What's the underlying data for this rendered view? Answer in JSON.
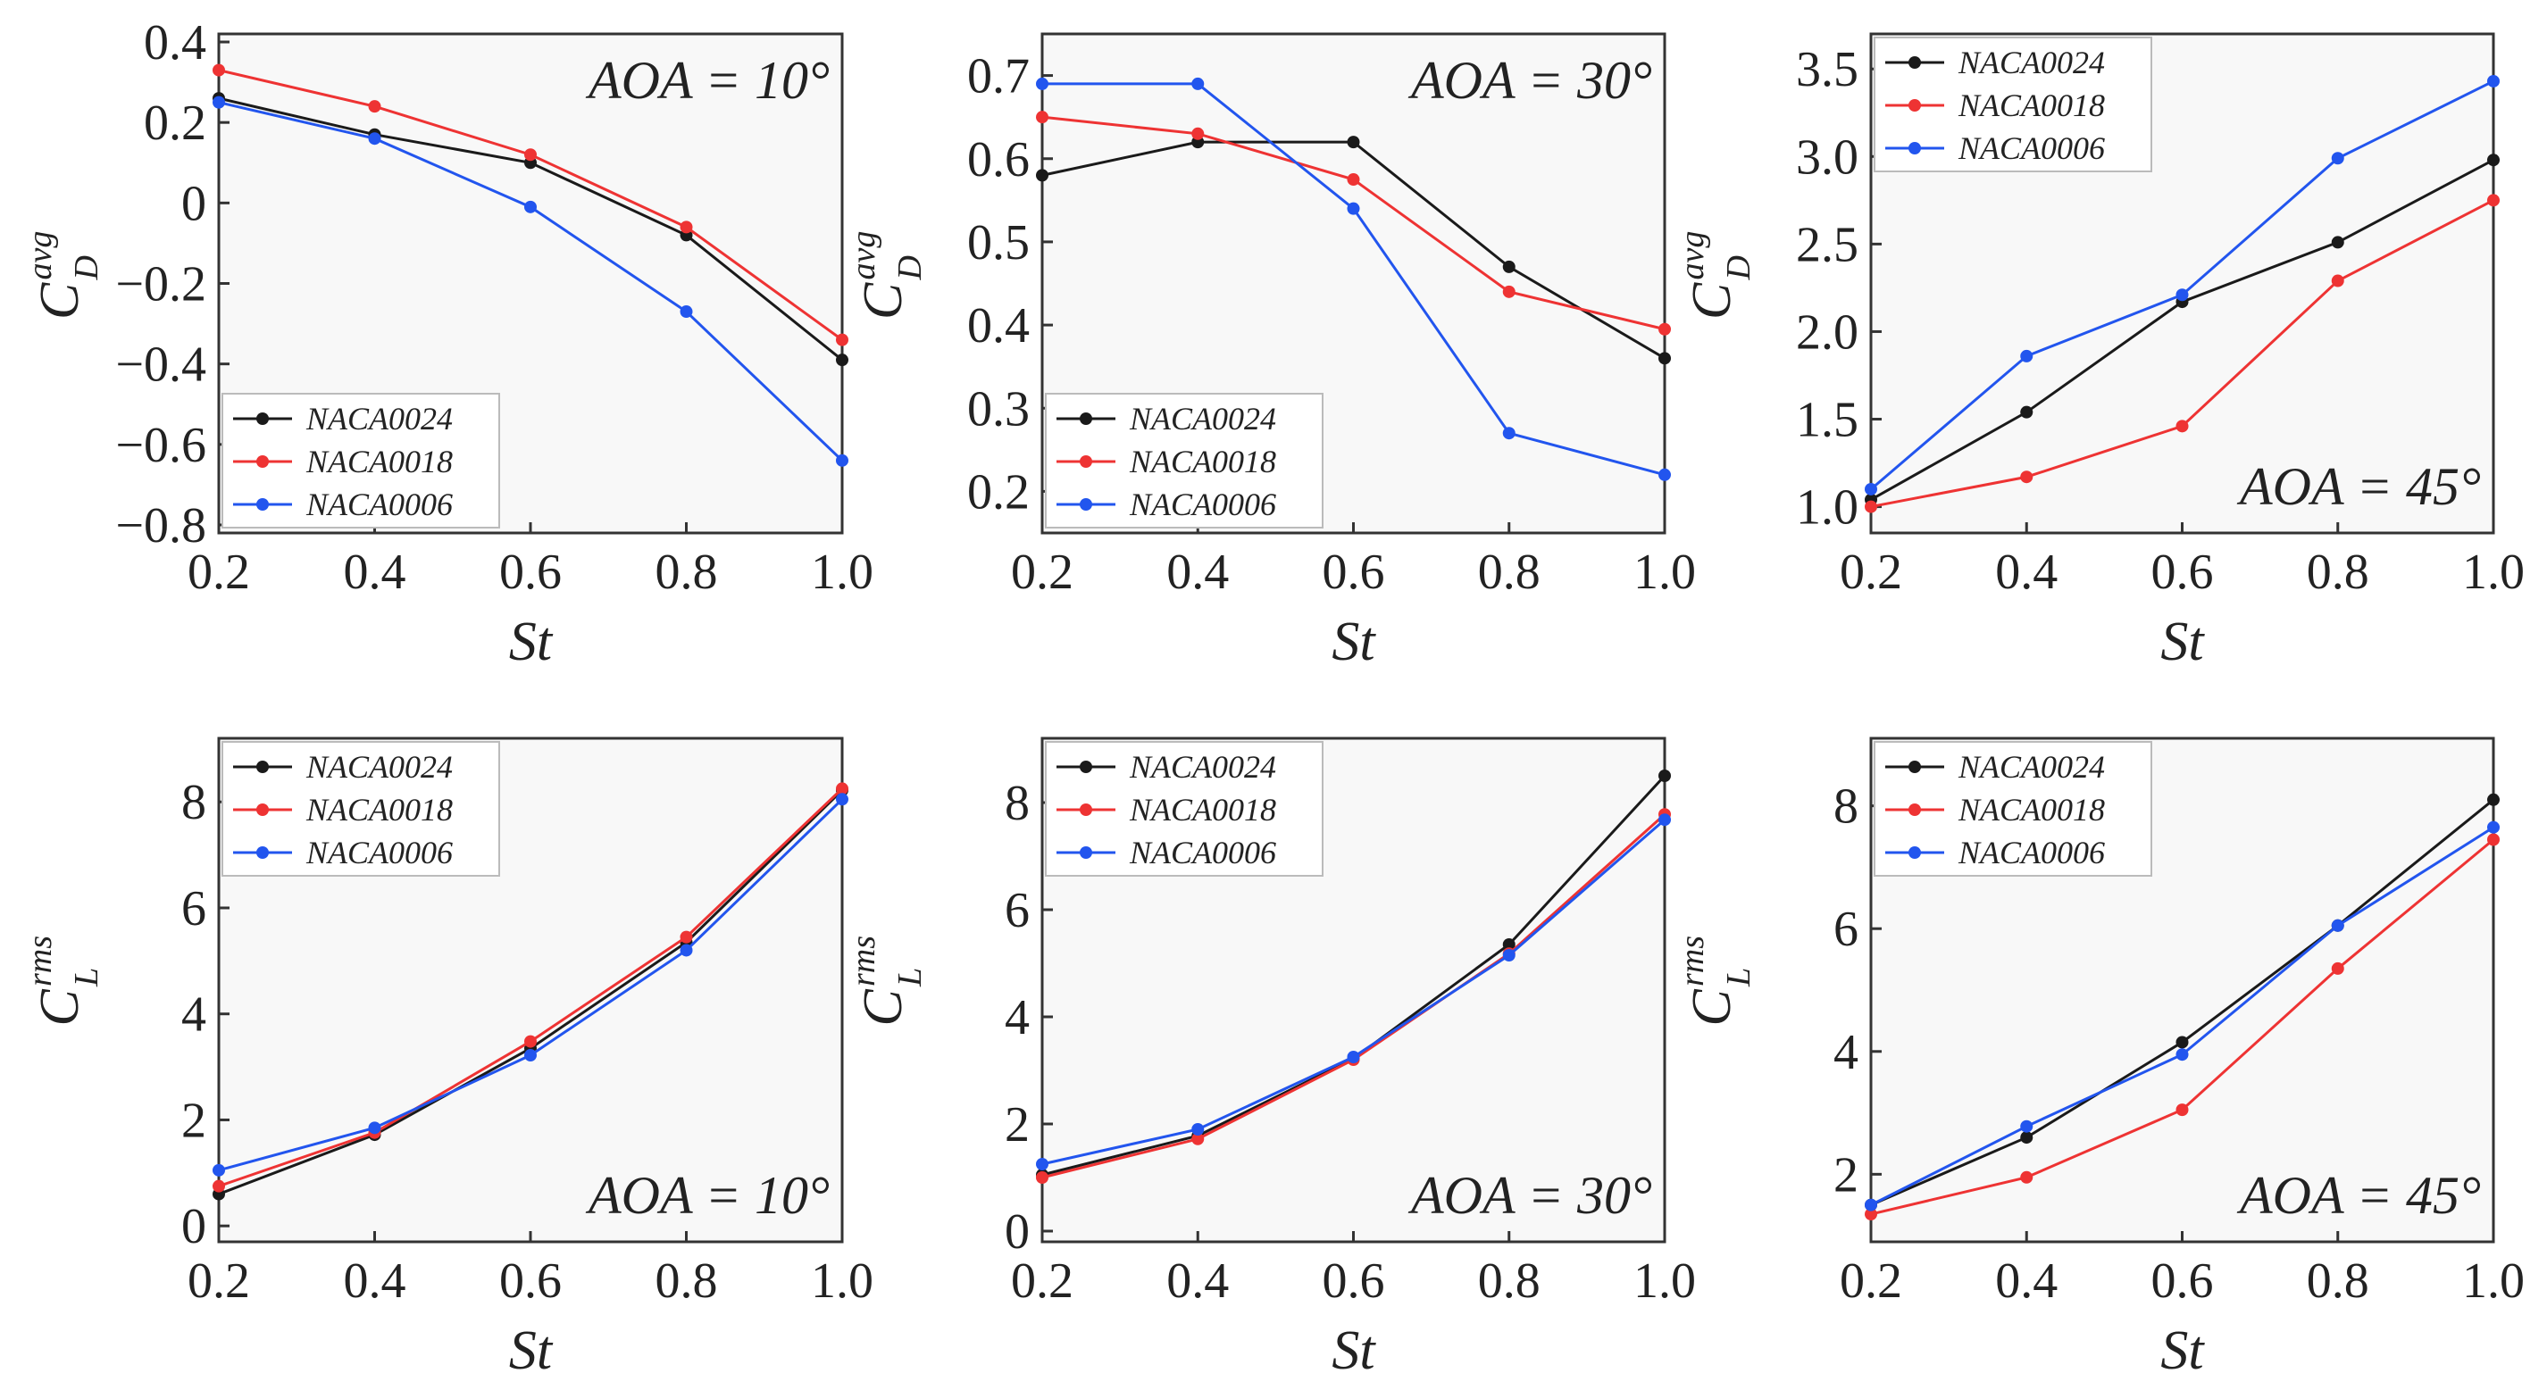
{
  "figure": {
    "colors": {
      "NACA0024": "#1a1a1a",
      "NACA0018": "#ee3333",
      "NACA0006": "#2255ee"
    }
  },
  "chart_data": [
    {
      "id": "cd-10",
      "type": "line",
      "title": "",
      "annotation": "AOA = 10°",
      "xlabel": "St",
      "ylabel": {
        "base": "C",
        "sup": "avg",
        "sub": "D"
      },
      "x": [
        0.2,
        0.4,
        0.6,
        0.8,
        1.0
      ],
      "xlim": [
        0.2,
        1.0
      ],
      "ylim": [
        -0.82,
        0.42
      ],
      "xticks": [
        0.2,
        0.4,
        0.6,
        0.8,
        1.0
      ],
      "xtick_labels": [
        "0.2",
        "0.4",
        "0.6",
        "0.8",
        "1.0"
      ],
      "yticks": [
        0.4,
        0.2,
        0,
        -0.2,
        -0.4,
        -0.6,
        -0.8
      ],
      "ytick_labels": [
        "0.4",
        "0.2",
        "0",
        "−0.2",
        "−0.4",
        "−0.6",
        "−0.8"
      ],
      "legend_position": "bottom-left",
      "annotation_position": "top-right",
      "series": [
        {
          "name": "NACA0024",
          "values": [
            0.26,
            0.17,
            0.1,
            -0.08,
            -0.39
          ]
        },
        {
          "name": "NACA0018",
          "values": [
            0.33,
            0.24,
            0.12,
            -0.06,
            -0.34
          ]
        },
        {
          "name": "NACA0006",
          "values": [
            0.25,
            0.16,
            -0.01,
            -0.27,
            -0.64
          ]
        }
      ]
    },
    {
      "id": "cd-30",
      "type": "line",
      "title": "",
      "annotation": "AOA = 30°",
      "xlabel": "St",
      "ylabel": {
        "base": "C",
        "sup": "avg",
        "sub": "D"
      },
      "x": [
        0.2,
        0.4,
        0.6,
        0.8,
        1.0
      ],
      "xlim": [
        0.2,
        1.0
      ],
      "ylim": [
        0.15,
        0.75
      ],
      "xticks": [
        0.2,
        0.4,
        0.6,
        0.8,
        1.0
      ],
      "xtick_labels": [
        "0.2",
        "0.4",
        "0.6",
        "0.8",
        "1.0"
      ],
      "yticks": [
        0.7,
        0.6,
        0.5,
        0.4,
        0.3,
        0.2
      ],
      "ytick_labels": [
        "0.7",
        "0.6",
        "0.5",
        "0.4",
        "0.3",
        "0.2"
      ],
      "legend_position": "bottom-left",
      "annotation_position": "top-right",
      "series": [
        {
          "name": "NACA0024",
          "values": [
            0.58,
            0.62,
            0.62,
            0.47,
            0.36
          ]
        },
        {
          "name": "NACA0018",
          "values": [
            0.65,
            0.63,
            0.575,
            0.44,
            0.395
          ]
        },
        {
          "name": "NACA0006",
          "values": [
            0.69,
            0.69,
            0.54,
            0.27,
            0.22
          ]
        }
      ]
    },
    {
      "id": "cd-45",
      "type": "line",
      "title": "",
      "annotation": "AOA = 45°",
      "xlabel": "St",
      "ylabel": {
        "base": "C",
        "sup": "avg",
        "sub": "D"
      },
      "x": [
        0.2,
        0.4,
        0.6,
        0.8,
        1.0
      ],
      "xlim": [
        0.2,
        1.0
      ],
      "ylim": [
        0.85,
        3.7
      ],
      "xticks": [
        0.2,
        0.4,
        0.6,
        0.8,
        1.0
      ],
      "xtick_labels": [
        "0.2",
        "0.4",
        "0.6",
        "0.8",
        "1.0"
      ],
      "yticks": [
        3.5,
        3.0,
        2.5,
        2.0,
        1.5,
        1.0
      ],
      "ytick_labels": [
        "3.5",
        "3.0",
        "2.5",
        "2.0",
        "1.5",
        "1.0"
      ],
      "legend_position": "top-left",
      "annotation_position": "bottom-right",
      "series": [
        {
          "name": "NACA0024",
          "values": [
            1.04,
            1.54,
            2.17,
            2.51,
            2.98
          ]
        },
        {
          "name": "NACA0018",
          "values": [
            1.0,
            1.17,
            1.46,
            2.29,
            2.75
          ]
        },
        {
          "name": "NACA0006",
          "values": [
            1.1,
            1.86,
            2.21,
            2.99,
            3.43
          ]
        }
      ]
    },
    {
      "id": "cl-10",
      "type": "line",
      "title": "",
      "annotation": "AOA = 10°",
      "xlabel": "St",
      "ylabel": {
        "base": "C",
        "sup": "rms",
        "sub": "L"
      },
      "x": [
        0.2,
        0.4,
        0.6,
        0.8,
        1.0
      ],
      "xlim": [
        0.2,
        1.0
      ],
      "ylim": [
        -0.3,
        9.2
      ],
      "xticks": [
        0.2,
        0.4,
        0.6,
        0.8,
        1.0
      ],
      "xtick_labels": [
        "0.2",
        "0.4",
        "0.6",
        "0.8",
        "1.0"
      ],
      "yticks": [
        8,
        6,
        4,
        2,
        0
      ],
      "ytick_labels": [
        "8",
        "6",
        "4",
        "2",
        "0"
      ],
      "legend_position": "top-left",
      "annotation_position": "bottom-right",
      "series": [
        {
          "name": "NACA0024",
          "values": [
            0.6,
            1.72,
            3.35,
            5.35,
            8.22
          ]
        },
        {
          "name": "NACA0018",
          "values": [
            0.75,
            1.76,
            3.48,
            5.45,
            8.25
          ]
        },
        {
          "name": "NACA0006",
          "values": [
            1.05,
            1.85,
            3.22,
            5.2,
            8.05
          ]
        }
      ]
    },
    {
      "id": "cl-30",
      "type": "line",
      "title": "",
      "annotation": "AOA = 30°",
      "xlabel": "St",
      "ylabel": {
        "base": "C",
        "sup": "rms",
        "sub": "L"
      },
      "x": [
        0.2,
        0.4,
        0.6,
        0.8,
        1.0
      ],
      "xlim": [
        0.2,
        1.0
      ],
      "ylim": [
        -0.2,
        9.2
      ],
      "xticks": [
        0.2,
        0.4,
        0.6,
        0.8,
        1.0
      ],
      "xtick_labels": [
        "0.2",
        "0.4",
        "0.6",
        "0.8",
        "1.0"
      ],
      "yticks": [
        8,
        6,
        4,
        2,
        0
      ],
      "ytick_labels": [
        "8",
        "6",
        "4",
        "2",
        "0"
      ],
      "legend_position": "top-left",
      "annotation_position": "bottom-right",
      "series": [
        {
          "name": "NACA0024",
          "values": [
            1.05,
            1.78,
            3.22,
            5.35,
            8.5
          ]
        },
        {
          "name": "NACA0018",
          "values": [
            1.0,
            1.72,
            3.2,
            5.18,
            7.78
          ]
        },
        {
          "name": "NACA0006",
          "values": [
            1.25,
            1.9,
            3.25,
            5.15,
            7.68
          ]
        }
      ]
    },
    {
      "id": "cl-45",
      "type": "line",
      "title": "",
      "annotation": "AOA = 45°",
      "xlabel": "St",
      "ylabel": {
        "base": "C",
        "sup": "rms",
        "sub": "L"
      },
      "x": [
        0.2,
        0.4,
        0.6,
        0.8,
        1.0
      ],
      "xlim": [
        0.2,
        1.0
      ],
      "ylim": [
        0.9,
        9.1
      ],
      "xticks": [
        0.2,
        0.4,
        0.6,
        0.8,
        1.0
      ],
      "xtick_labels": [
        "0.2",
        "0.4",
        "0.6",
        "0.8",
        "1.0"
      ],
      "yticks": [
        8,
        6,
        4,
        2
      ],
      "ytick_labels": [
        "8",
        "6",
        "4",
        "2"
      ],
      "legend_position": "top-left",
      "annotation_position": "bottom-right",
      "series": [
        {
          "name": "NACA0024",
          "values": [
            1.5,
            2.6,
            4.15,
            6.05,
            8.1
          ]
        },
        {
          "name": "NACA0018",
          "values": [
            1.35,
            1.95,
            3.05,
            5.35,
            7.45
          ]
        },
        {
          "name": "NACA0006",
          "values": [
            1.5,
            2.78,
            3.95,
            6.05,
            7.65
          ]
        }
      ]
    }
  ]
}
